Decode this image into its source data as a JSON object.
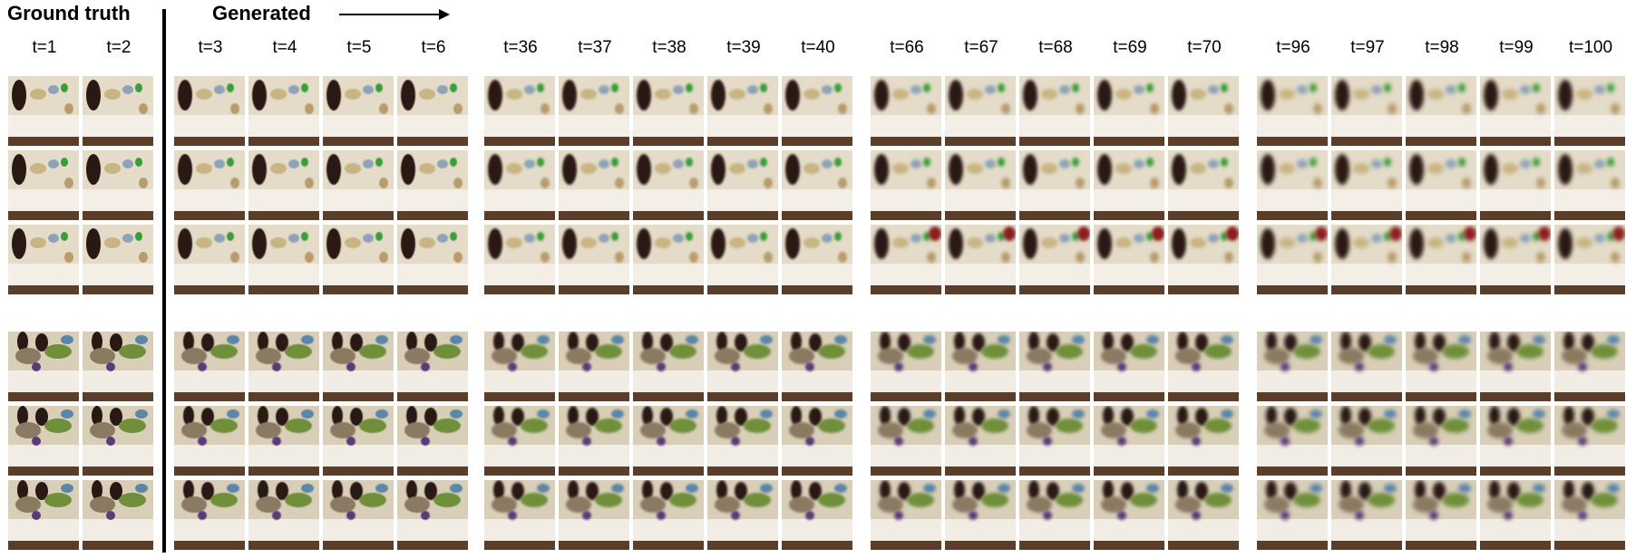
{
  "headers": {
    "ground_truth": "Ground truth",
    "generated": "Generated"
  },
  "time_labels": [
    "t=1",
    "t=2",
    "t=3",
    "t=4",
    "t=5",
    "t=6",
    "t=36",
    "t=37",
    "t=38",
    "t=39",
    "t=40",
    "t=66",
    "t=67",
    "t=68",
    "t=69",
    "t=70",
    "t=96",
    "t=97",
    "t=98",
    "t=99",
    "t=100"
  ],
  "colors": {
    "text": "#000000",
    "divider": "#000000",
    "background": "#ffffff",
    "bench": "#5a3e2a",
    "robot_arm": "#2a1814"
  }
}
